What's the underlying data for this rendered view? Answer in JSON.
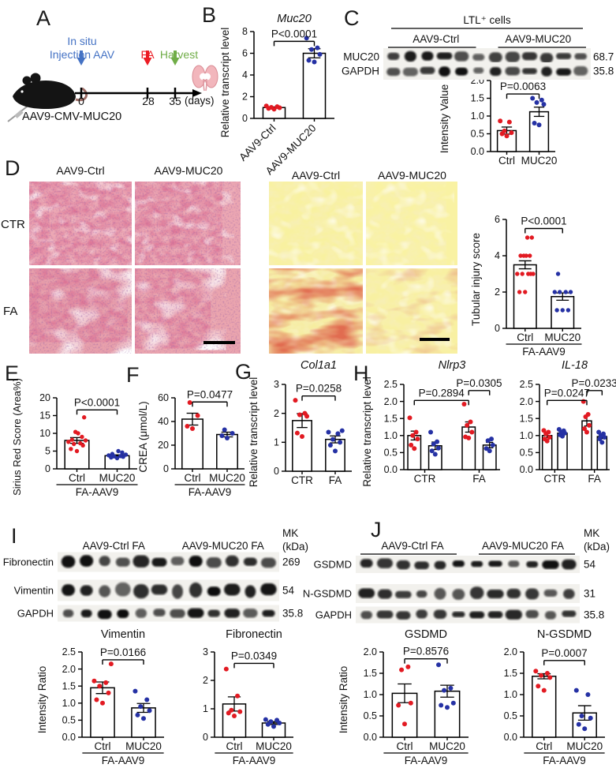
{
  "colors": {
    "dot_red": "#e21a22",
    "dot_blue": "#2531a4",
    "injection_blue": "#4472c4",
    "fa_red": "#ec1c24",
    "harvest_green": "#70ad47"
  },
  "panelA": {
    "label": "A",
    "event_injection_line1": "In situ",
    "event_injection_line2": "Injection AAV",
    "event_fa": "FA",
    "event_harvest": "Harvest",
    "day0": "0",
    "day28": "28",
    "day35": "35",
    "days_unit": "(days)",
    "caption": "AAV9-CMV-MUC20"
  },
  "panelB": {
    "label": "B"
  },
  "panelC": {
    "label": "C",
    "blot": {
      "header": "LTL⁺ cells",
      "groups": [
        "AAV9-Ctrl",
        "AAV9-MUC20"
      ],
      "lanes_per_group": 6,
      "rows": [
        {
          "name": "MUC20",
          "kda": "68.7"
        },
        {
          "name": "GAPDH",
          "kda": "35.8"
        }
      ]
    }
  },
  "panelD": {
    "label": "D",
    "he_columns": [
      "AAV9-Ctrl",
      "AAV9-MUC20"
    ],
    "sr_columns": [
      "AAV9-Ctrl",
      "AAV9-MUC20"
    ],
    "rows": [
      "CTR",
      "FA"
    ]
  },
  "panelE": {
    "label": "E"
  },
  "panelF": {
    "label": "F"
  },
  "panelG": {
    "label": "G"
  },
  "panelH": {
    "label": "H"
  },
  "panelI": {
    "label": "I",
    "blot": {
      "mk": "MK",
      "kda_unit": "(kDa)",
      "groups": [
        "AAV9-Ctrl FA",
        "AAV9-MUC20 FA"
      ],
      "lanes_per_group": 6,
      "rows": [
        {
          "name": "Fibronectin",
          "kda": "269"
        },
        {
          "name": "Vimentin",
          "kda": "54"
        },
        {
          "name": "GAPDH",
          "kda": "35.8"
        }
      ]
    }
  },
  "panelJ": {
    "label": "J",
    "blot": {
      "mk": "MK",
      "kda_unit": "(kDa)",
      "groups": [
        "AAV9-Ctrl FA",
        "AAV9-MUC20 FA"
      ],
      "lanes_per_group": 6,
      "rows": [
        {
          "name": "GSDMD",
          "kda": "54"
        },
        {
          "name": "N-GSDMD",
          "kda": "31"
        },
        {
          "name": "GAPDH",
          "kda": "35.8"
        }
      ]
    }
  },
  "chart_data": [
    {
      "id": "muc20_transcript",
      "type": "bar-scatter",
      "title": "Muc20",
      "title_italic": true,
      "ylabel": "Relative transcript level",
      "ylim": [
        0,
        8
      ],
      "yticks": [
        0,
        2,
        4,
        6,
        8
      ],
      "ydec": 0,
      "categories": [
        "AAV9-Ctrl",
        "AAV9-MUC20"
      ],
      "bars": [
        {
          "mean": 1.0,
          "sem": 0.06,
          "color": "#e21a22",
          "dots": [
            0.85,
            0.92,
            0.98,
            1.02,
            1.08,
            1.15
          ]
        },
        {
          "mean": 6.0,
          "sem": 0.42,
          "color": "#2531a4",
          "dots": [
            5.2,
            5.35,
            5.9,
            6.35,
            6.5,
            7.4
          ]
        }
      ],
      "sig": [
        {
          "a": 0,
          "b": 1,
          "y": 7.1,
          "label": "P<0.0001"
        }
      ],
      "group_label": null
    },
    {
      "id": "muc20_intensity",
      "type": "bar-scatter",
      "title": null,
      "ylabel": "Intensity Value",
      "ylim": [
        0,
        2
      ],
      "yticks": [
        0,
        0.5,
        1,
        1.5,
        2
      ],
      "ydec": 1,
      "categories": [
        "Ctrl",
        "MUC20"
      ],
      "bars": [
        {
          "mean": 0.59,
          "sem": 0.1,
          "color": "#e21a22",
          "dots": [
            0.44,
            0.5,
            0.53,
            0.58,
            0.83,
            0.86
          ]
        },
        {
          "mean": 1.12,
          "sem": 0.13,
          "color": "#2531a4",
          "dots": [
            0.75,
            0.8,
            1.33,
            1.38,
            1.45,
            1.5
          ]
        }
      ],
      "sig": [
        {
          "a": 0,
          "b": 1,
          "y": 1.62,
          "label": "P=0.0063"
        }
      ],
      "group_label": null
    },
    {
      "id": "tubular_injury",
      "type": "bar-scatter",
      "title": null,
      "ylabel": "Tubular injury score",
      "ylim": [
        0,
        6
      ],
      "yticks": [
        0,
        2,
        4,
        6
      ],
      "ydec": 0,
      "categories": [
        "Ctrl",
        "MUC20"
      ],
      "bars": [
        {
          "mean": 3.5,
          "sem": 0.22,
          "color": "#e21a22",
          "dots": [
            2,
            2,
            3,
            3,
            3,
            3,
            3,
            4,
            4,
            4,
            4,
            5,
            5
          ]
        },
        {
          "mean": 1.75,
          "sem": 0.2,
          "color": "#2531a4",
          "dots": [
            1,
            1,
            1,
            2,
            2,
            2,
            2,
            3
          ]
        }
      ],
      "sig": [
        {
          "a": 0,
          "b": 1,
          "y": 5.5,
          "label": "P<0.0001"
        }
      ],
      "group_label": "FA-AAV9"
    },
    {
      "id": "sirius_red_score",
      "type": "bar-scatter",
      "title": null,
      "ylabel": "Sirius Red Score (Area%)",
      "ylim": [
        0,
        20
      ],
      "yticks": [
        0,
        5,
        10,
        15,
        20
      ],
      "ydec": 0,
      "categories": [
        "Ctrl",
        "MUC20"
      ],
      "bars": [
        {
          "mean": 8.0,
          "sem": 0.8,
          "color": "#e21a22",
          "dots": [
            5,
            5.6,
            6.6,
            7,
            7.2,
            7.6,
            8,
            8.2,
            9,
            10,
            10.4,
            14.5
          ]
        },
        {
          "mean": 3.7,
          "sem": 0.25,
          "color": "#2531a4",
          "dots": [
            3,
            3.2,
            3.4,
            3.5,
            3.6,
            3.8,
            4,
            4.2,
            4.6,
            5
          ]
        }
      ],
      "sig": [
        {
          "a": 0,
          "b": 1,
          "y": 16.6,
          "label": "P<0.0001"
        }
      ],
      "group_label": "FA-AAV9"
    },
    {
      "id": "crea",
      "type": "bar-scatter",
      "title": null,
      "ylabel": "CREA (μmol/L)",
      "ylim": [
        0,
        60
      ],
      "yticks": [
        0,
        20,
        40,
        60
      ],
      "ydec": 0,
      "categories": [
        "Ctrl",
        "MUC20"
      ],
      "bars": [
        {
          "mean": 42,
          "sem": 5,
          "color": "#e21a22",
          "dots": [
            34,
            36,
            45,
            56
          ]
        },
        {
          "mean": 29,
          "sem": 2,
          "color": "#2531a4",
          "dots": [
            26,
            28,
            30,
            33
          ]
        }
      ],
      "sig": [
        {
          "a": 0,
          "b": 1,
          "y": 56.5,
          "label": "P=0.0477"
        }
      ],
      "group_label": "FA-AAV9"
    },
    {
      "id": "col1a1",
      "type": "bar-scatter",
      "title": "Col1a1",
      "title_italic": true,
      "ylabel": "Relative transcript level",
      "ylim": [
        0,
        3
      ],
      "yticks": [
        0,
        1,
        2,
        3
      ],
      "ydec": 0,
      "categories": [
        "CTR",
        "FA"
      ],
      "bars": [
        {
          "mean": 1.75,
          "sem": 0.24,
          "color": "#e21a22",
          "dots": [
            1.2,
            1.32,
            1.9,
            1.95,
            2.0,
            2.45
          ]
        },
        {
          "mean": 1.1,
          "sem": 0.12,
          "color": "#2531a4",
          "dots": [
            0.7,
            0.9,
            1.0,
            1.1,
            1.3,
            1.35,
            1.4
          ]
        }
      ],
      "sig": [
        {
          "a": 0,
          "b": 1,
          "y": 2.6,
          "label": "P=0.0258"
        }
      ],
      "group_label": null
    },
    {
      "id": "nlrp3",
      "type": "bar-scatter",
      "paired": true,
      "title": "Nlrp3",
      "title_italic": true,
      "ylabel": "Relative transcript level",
      "ylim": [
        0,
        2.5
      ],
      "yticks": [
        0,
        0.5,
        1,
        1.5,
        2,
        2.5
      ],
      "ydec": 1,
      "categories": [
        "CTR",
        "FA"
      ],
      "bars": [
        {
          "mean": 1.0,
          "sem": 0.13,
          "color": "#e21a22",
          "dots": [
            0.62,
            0.72,
            0.9,
            1.0,
            1.1,
            1.52
          ]
        },
        {
          "mean": 0.7,
          "sem": 0.11,
          "color": "#2531a4",
          "dots": [
            0.45,
            0.55,
            0.63,
            0.75,
            0.82,
            1.1
          ]
        },
        {
          "mean": 1.25,
          "sem": 0.15,
          "color": "#e21a22",
          "dots": [
            0.93,
            0.96,
            1.1,
            1.3,
            1.4,
            1.92
          ]
        },
        {
          "mean": 0.72,
          "sem": 0.08,
          "color": "#2531a4",
          "dots": [
            0.55,
            0.62,
            0.72,
            0.85,
            0.9
          ]
        }
      ],
      "sig": [
        {
          "a": 0,
          "b": 2,
          "y": 2.03,
          "label": "P=0.2894"
        },
        {
          "a": 2,
          "b": 3,
          "y": 2.32,
          "label": "P=0.0305"
        }
      ],
      "group_label": null
    },
    {
      "id": "il18",
      "type": "bar-scatter",
      "paired": true,
      "title": "IL-18",
      "title_italic": true,
      "ylabel": null,
      "ylim": [
        0,
        2.5
      ],
      "yticks": [
        0,
        0.5,
        1,
        1.5,
        2,
        2.5
      ],
      "ydec": 1,
      "categories": [
        "CTR",
        "FA"
      ],
      "bars": [
        {
          "mean": 1.0,
          "sem": 0.06,
          "color": "#e21a22",
          "dots": [
            0.84,
            0.9,
            0.95,
            1.05,
            1.1,
            1.15
          ]
        },
        {
          "mean": 1.07,
          "sem": 0.04,
          "color": "#2531a4",
          "dots": [
            0.98,
            1.02,
            1.07,
            1.1,
            1.14,
            1.18
          ]
        },
        {
          "mean": 1.43,
          "sem": 0.15,
          "color": "#e21a22",
          "dots": [
            1.1,
            1.2,
            1.3,
            1.55,
            1.62,
            2.0
          ]
        },
        {
          "mean": 0.97,
          "sem": 0.06,
          "color": "#2531a4",
          "dots": [
            0.8,
            0.9,
            0.95,
            1.0,
            1.05,
            1.1
          ]
        }
      ],
      "sig": [
        {
          "a": 0,
          "b": 2,
          "y": 2.03,
          "label": "P=0.0247"
        },
        {
          "a": 2,
          "b": 3,
          "y": 2.32,
          "label": "P=0.0233"
        }
      ],
      "group_label": null
    },
    {
      "id": "vimentin_ratio",
      "type": "bar-scatter",
      "title": "Vimentin",
      "title_italic": false,
      "ylabel": "Intensity Ratio",
      "ylim": [
        0,
        2.5
      ],
      "yticks": [
        0,
        0.5,
        1,
        1.5,
        2,
        2.5
      ],
      "ydec": 1,
      "categories": [
        "Ctrl",
        "MUC20"
      ],
      "bars": [
        {
          "mean": 1.45,
          "sem": 0.17,
          "color": "#e21a22",
          "dots": [
            1.0,
            1.1,
            1.3,
            1.5,
            1.6,
            1.65,
            2.15
          ]
        },
        {
          "mean": 0.86,
          "sem": 0.13,
          "color": "#2531a4",
          "dots": [
            0.55,
            0.65,
            0.78,
            0.9,
            1.1,
            1.35
          ]
        }
      ],
      "sig": [
        {
          "a": 0,
          "b": 1,
          "y": 2.27,
          "label": "P=0.0166"
        }
      ],
      "group_label": "FA-AAV9"
    },
    {
      "id": "fibronectin_ratio",
      "type": "bar-scatter",
      "title": "Fibronectin",
      "title_italic": false,
      "ylabel": null,
      "ylim": [
        0,
        3
      ],
      "yticks": [
        0,
        1,
        2,
        3
      ],
      "ydec": 0,
      "categories": [
        "Ctrl",
        "MUC20"
      ],
      "bars": [
        {
          "mean": 1.17,
          "sem": 0.25,
          "color": "#e21a22",
          "dots": [
            0.75,
            0.85,
            0.9,
            0.95,
            1.45,
            2.4
          ]
        },
        {
          "mean": 0.5,
          "sem": 0.05,
          "color": "#2531a4",
          "dots": [
            0.38,
            0.45,
            0.5,
            0.55,
            0.6,
            0.62
          ]
        }
      ],
      "sig": [
        {
          "a": 0,
          "b": 1,
          "y": 2.6,
          "label": "P=0.0349"
        }
      ],
      "group_label": "FA-AAV9"
    },
    {
      "id": "gsdmd_ratio",
      "type": "bar-scatter",
      "title": "GSDMD",
      "title_italic": false,
      "ylabel": "Intensity Ratio",
      "ylim": [
        0,
        2
      ],
      "yticks": [
        0,
        0.5,
        1,
        1.5,
        2
      ],
      "ydec": 1,
      "categories": [
        "Ctrl",
        "MUC20"
      ],
      "bars": [
        {
          "mean": 1.03,
          "sem": 0.22,
          "color": "#e21a22",
          "dots": [
            0.31,
            0.75,
            0.8,
            1.58,
            1.65
          ]
        },
        {
          "mean": 1.08,
          "sem": 0.14,
          "color": "#2531a4",
          "dots": [
            0.7,
            0.75,
            0.8,
            1.1,
            1.15,
            1.7
          ]
        }
      ],
      "sig": [
        {
          "a": 0,
          "b": 1,
          "y": 1.84,
          "label": "P=0.8576"
        }
      ],
      "group_label": "FA-AAV9"
    },
    {
      "id": "ngsdmd_ratio",
      "type": "bar-scatter",
      "title": "N-GSDMD",
      "title_italic": false,
      "ylabel": null,
      "ylim": [
        0,
        2
      ],
      "yticks": [
        0,
        0.5,
        1,
        1.5,
        2
      ],
      "ydec": 1,
      "categories": [
        "Ctrl",
        "MUC20"
      ],
      "bars": [
        {
          "mean": 1.43,
          "sem": 0.06,
          "color": "#e21a22",
          "dots": [
            1.1,
            1.2,
            1.4,
            1.45,
            1.5,
            1.55
          ]
        },
        {
          "mean": 0.57,
          "sem": 0.17,
          "color": "#2531a4",
          "dots": [
            0.2,
            0.3,
            0.45,
            0.5,
            1.0,
            1.1
          ]
        }
      ],
      "sig": [
        {
          "a": 0,
          "b": 1,
          "y": 1.8,
          "label": "P=0.0007"
        }
      ],
      "group_label": "FA-AAV9"
    }
  ]
}
